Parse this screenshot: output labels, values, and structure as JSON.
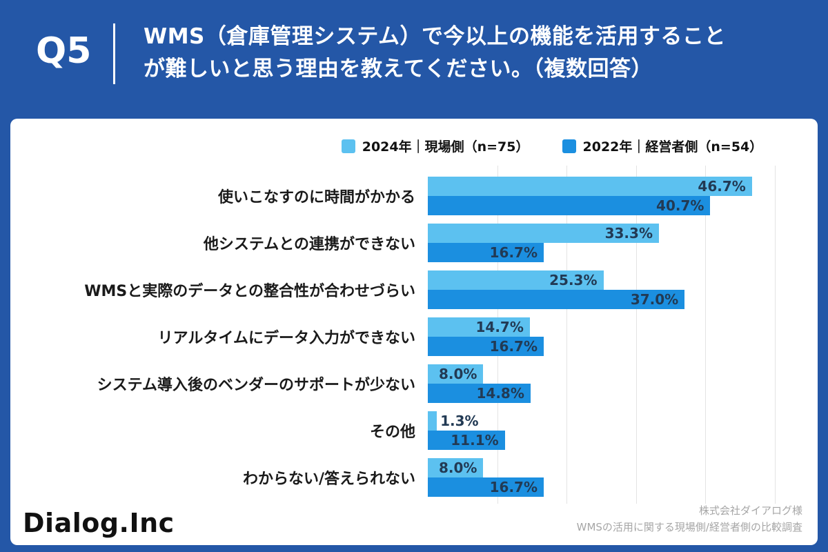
{
  "header": {
    "question_number": "Q5",
    "title_line1": "WMS（倉庫管理システム）で今以上の機能を活用すること",
    "title_line2": "が難しいと思う理由を教えてください。（複数回答）"
  },
  "chart_data": {
    "type": "bar",
    "orientation": "horizontal",
    "title": "WMS（倉庫管理システム）で今以上の機能を活用することが難しいと思う理由を教えてください。（複数回答）",
    "categories": [
      "使いこなすのに時間がかかる",
      "他システムとの連携ができない",
      "WMSと実際のデータとの整合性が合わせづらい",
      "リアルタイムにデータ入力ができない",
      "システム導入後のベンダーのサポートが少ない",
      "その他",
      "わからない/答えられない"
    ],
    "series": [
      {
        "key": "2024",
        "name": "2024年｜現場側（n=75）",
        "color": "#5CC1F0",
        "values": [
          46.7,
          33.3,
          25.3,
          14.7,
          8.0,
          1.3,
          8.0
        ]
      },
      {
        "key": "2022",
        "name": "2022年｜経営者側（n=54）",
        "color": "#1B8FE0",
        "values": [
          40.7,
          16.7,
          37.0,
          16.7,
          14.8,
          11.1,
          16.7
        ]
      }
    ],
    "value_suffix": "%",
    "xlim": [
      0,
      50
    ],
    "gridlines": [
      10,
      20,
      30,
      40,
      50
    ],
    "legend_position": "top",
    "grid": true
  },
  "footer": {
    "logo": "Dialog.Inc",
    "credit_line1": "株式会社ダイアログ様",
    "credit_line2": "WMSの活用に関する現場側/経営者側の比較調査"
  },
  "colors": {
    "background": "#2457A7",
    "card": "#FFFFFF",
    "series_2024": "#5CC1F0",
    "series_2022": "#1B8FE0",
    "value_label": "#223A54",
    "gridline": "#E3E3E3"
  }
}
